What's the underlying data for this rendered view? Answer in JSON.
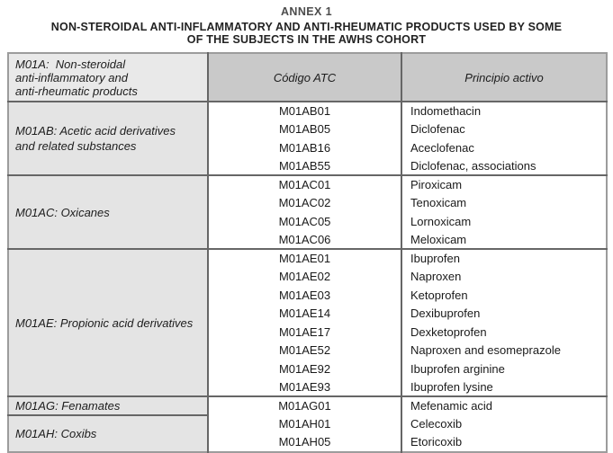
{
  "colors": {
    "group_cell_bg": "#e4e4e4",
    "header_left_cell_bg": "#e9e9e9",
    "header_cell_bg": "#c9c9c9",
    "inner_border": "#666666",
    "outer_border": "#9c9c9c",
    "body_text": "#1a1a1a",
    "annex_title_text": "#4c4c4c"
  },
  "page": {
    "annex_title": "ANNEX 1",
    "title": "NON-STEROIDAL ANTI-INFLAMMATORY AND ANTI-RHEUMATIC PRODUCTS USED BY SOME\nOF THE SUBJECTS IN THE AWHS COHORT"
  },
  "table": {
    "header": {
      "col1": "M01A:  Non-steroidal\nanti-inflammatory and\nanti-rheumatic products",
      "col2": "Código ATC",
      "col3": "Principio activo"
    },
    "groups": [
      {
        "label": "M01AB: Acetic acid derivatives\nand related substances",
        "rows": [
          {
            "code": "M01AB01",
            "active": "Indomethacin"
          },
          {
            "code": "M01AB05",
            "active": "Diclofenac"
          },
          {
            "code": "M01AB16",
            "active": "Aceclofenac"
          },
          {
            "code": "M01AB55",
            "active": "Diclofenac, associations"
          }
        ]
      },
      {
        "label": "M01AC: Oxicanes",
        "rows": [
          {
            "code": "M01AC01",
            "active": "Piroxicam"
          },
          {
            "code": "M01AC02",
            "active": "Tenoxicam"
          },
          {
            "code": "M01AC05",
            "active": "Lornoxicam"
          },
          {
            "code": "M01AC06",
            "active": "Meloxicam"
          }
        ]
      },
      {
        "label": "M01AE: Propionic acid derivatives",
        "rows": [
          {
            "code": "M01AE01",
            "active": "Ibuprofen"
          },
          {
            "code": "M01AE02",
            "active": "Naproxen"
          },
          {
            "code": "M01AE03",
            "active": "Ketoprofen"
          },
          {
            "code": "M01AE14",
            "active": "Dexibuprofen"
          },
          {
            "code": "M01AE17",
            "active": "Dexketoprofen"
          },
          {
            "code": "M01AE52",
            "active": "Naproxen and esomeprazole"
          },
          {
            "code": "M01AE92",
            "active": "Ibuprofen arginine"
          },
          {
            "code": "M01AE93",
            "active": "Ibuprofen lysine"
          }
        ]
      },
      {
        "label": "M01AG: Fenamates",
        "rows": [
          {
            "code": "M01AG01",
            "active": "Mefenamic acid"
          }
        ]
      },
      {
        "label": "M01AH: Coxibs",
        "rows": [
          {
            "code": "M01AH01",
            "active": "Celecoxib"
          },
          {
            "code": "M01AH05",
            "active": "Etoricoxib"
          }
        ]
      }
    ]
  }
}
